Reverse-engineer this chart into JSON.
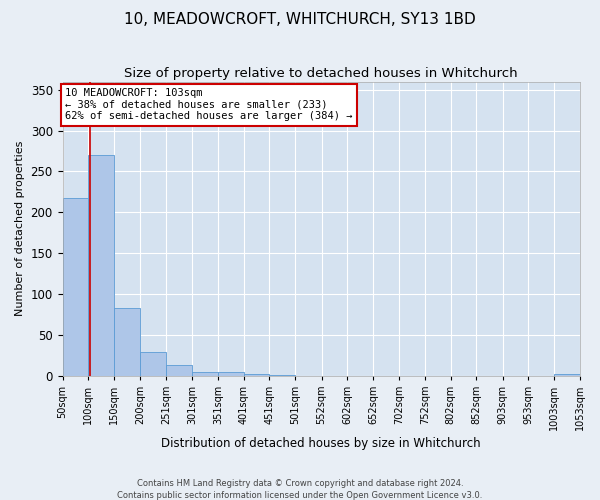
{
  "title": "10, MEADOWCROFT, WHITCHURCH, SY13 1BD",
  "subtitle": "Size of property relative to detached houses in Whitchurch",
  "xlabel": "Distribution of detached houses by size in Whitchurch",
  "ylabel": "Number of detached properties",
  "footer1": "Contains HM Land Registry data © Crown copyright and database right 2024.",
  "footer2": "Contains public sector information licensed under the Open Government Licence v3.0.",
  "bin_labels": [
    "50sqm",
    "100sqm",
    "150sqm",
    "200sqm",
    "251sqm",
    "301sqm",
    "351sqm",
    "401sqm",
    "451sqm",
    "501sqm",
    "552sqm",
    "602sqm",
    "652sqm",
    "702sqm",
    "752sqm",
    "802sqm",
    "852sqm",
    "903sqm",
    "953sqm",
    "1003sqm",
    "1053sqm"
  ],
  "bin_edges": [
    50,
    100,
    150,
    200,
    251,
    301,
    351,
    401,
    451,
    501,
    552,
    602,
    652,
    702,
    752,
    802,
    852,
    903,
    953,
    1003,
    1053
  ],
  "bar_heights": [
    217,
    270,
    83,
    29,
    13,
    4,
    4,
    2,
    1,
    0,
    0,
    0,
    0,
    0,
    0,
    0,
    0,
    0,
    0,
    2
  ],
  "bar_color": "#aec6e8",
  "bar_edge_color": "#5b9bd5",
  "property_size": 103,
  "annotation_line1": "10 MEADOWCROFT: 103sqm",
  "annotation_line2": "← 38% of detached houses are smaller (233)",
  "annotation_line3": "62% of semi-detached houses are larger (384) →",
  "vline_color": "#cc0000",
  "annotation_box_color": "#ffffff",
  "annotation_box_edge": "#cc0000",
  "ylim": [
    0,
    360
  ],
  "yticks": [
    0,
    50,
    100,
    150,
    200,
    250,
    300,
    350
  ],
  "background_color": "#e8eef5",
  "plot_background": "#d5e2f0",
  "grid_color": "#ffffff",
  "title_fontsize": 11,
  "subtitle_fontsize": 9.5
}
